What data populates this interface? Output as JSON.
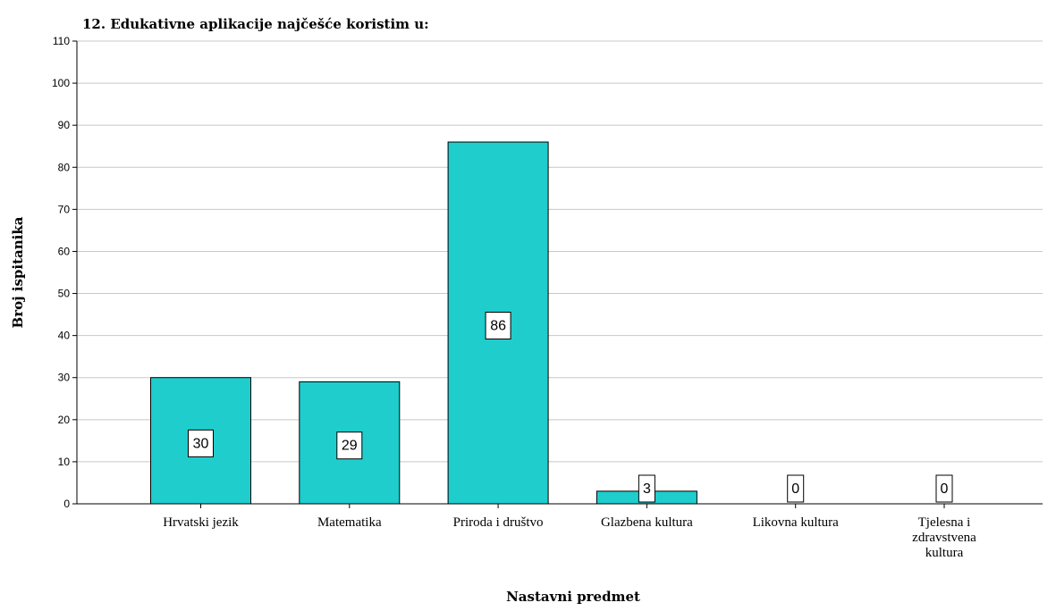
{
  "chart_data": {
    "type": "bar",
    "title": "12. Edukativne aplikacije najčešće koristim u:",
    "xlabel": "Nastavni predmet",
    "ylabel": "Broj ispitanika",
    "ylim": [
      0,
      110
    ],
    "yticks": [
      0,
      10,
      20,
      30,
      40,
      50,
      60,
      70,
      80,
      90,
      100,
      110
    ],
    "categories": [
      [
        "Hrvatski jezik"
      ],
      [
        "Matematika"
      ],
      [
        "Priroda i društvo"
      ],
      [
        "Glazbena kultura"
      ],
      [
        "Likovna kultura"
      ],
      [
        "Tjelesna i",
        "zdravstvena",
        "kultura"
      ]
    ],
    "values": [
      30,
      29,
      86,
      3,
      0,
      0
    ],
    "data_labels": [
      "30",
      "29",
      "86",
      "3",
      "0",
      "0"
    ],
    "grid": true,
    "legend": "none",
    "colors": {
      "bar": "#1fcdcd",
      "bar_stroke": "#000000",
      "grid": "#c8c8c8"
    }
  }
}
